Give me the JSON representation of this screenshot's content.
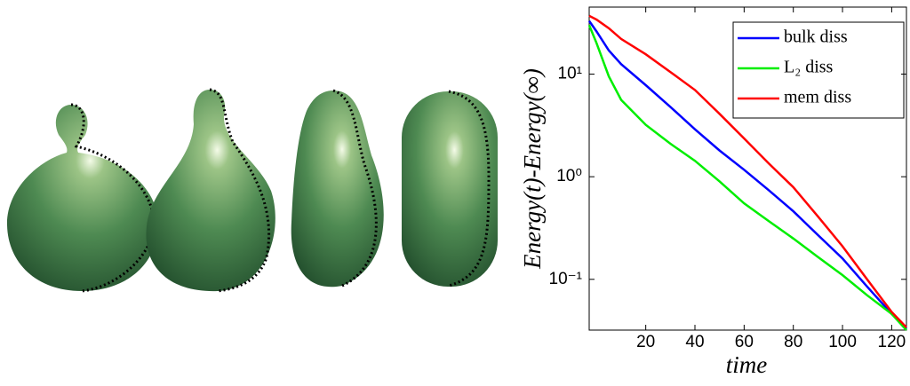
{
  "chart_data": {
    "type": "line",
    "scale": "log",
    "xlabel": "time",
    "ylabel": "Energy(t)-Energy(∞)",
    "x": [
      -3,
      0,
      5,
      10,
      20,
      30,
      40,
      50,
      60,
      70,
      80,
      90,
      100,
      110,
      120,
      126
    ],
    "series": [
      {
        "name": "bulk diss",
        "color": "#0000ff",
        "values": [
          33,
          26,
          17,
          12.5,
          7.8,
          4.8,
          2.9,
          1.8,
          1.17,
          0.74,
          0.46,
          0.27,
          0.16,
          0.085,
          0.046,
          0.033
        ]
      },
      {
        "name": "L₂ diss",
        "color": "#00ee00",
        "values": [
          30,
          20,
          9.5,
          5.6,
          3.2,
          2.1,
          1.43,
          0.9,
          0.55,
          0.37,
          0.25,
          0.165,
          0.11,
          0.07,
          0.046,
          0.032
        ]
      },
      {
        "name": "mem diss",
        "color": "#ff0000",
        "values": [
          37,
          34,
          28,
          22,
          15.6,
          10.5,
          7.0,
          4.1,
          2.36,
          1.35,
          0.79,
          0.41,
          0.21,
          0.1,
          0.048,
          0.034
        ]
      }
    ],
    "xlim": [
      -3,
      126
    ],
    "xticks": [
      20,
      40,
      60,
      80,
      100,
      120
    ],
    "ylim": [
      0.032,
      45
    ],
    "yticks": [
      {
        "value": 0.1,
        "label": "10⁻¹"
      },
      {
        "value": 1,
        "label": "10⁰"
      },
      {
        "value": 10,
        "label": "10¹"
      }
    ],
    "legend": "upper right",
    "grid": false
  }
}
